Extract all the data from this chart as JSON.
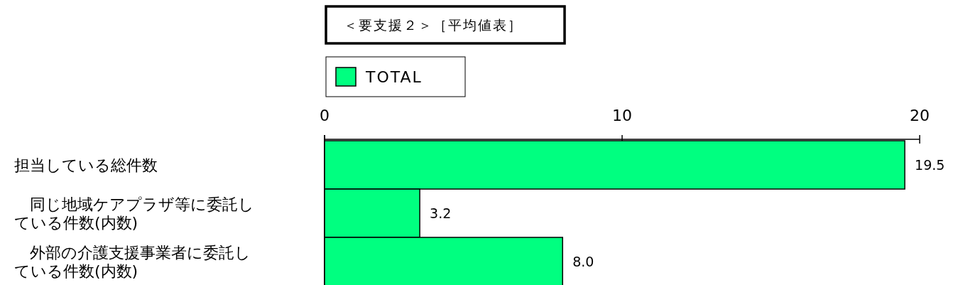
{
  "chart_data": {
    "type": "bar",
    "orientation": "horizontal",
    "title": "＜要支援２＞［平均値表］",
    "categories": [
      "担当している総件数",
      "　同じ地域ケアプラザ等に委託している件数(内数)",
      "　外部の介護支援事業者に委託している件数(内数)"
    ],
    "series": [
      {
        "name": "TOTAL",
        "color": "#00ff80",
        "values": [
          19.5,
          3.2,
          8.0
        ]
      }
    ],
    "value_labels": [
      "19.5",
      "3.2",
      "8.0"
    ],
    "xlim": [
      0,
      20
    ],
    "xticks": [
      0,
      10,
      20
    ],
    "legend": "top left",
    "grid": false
  }
}
